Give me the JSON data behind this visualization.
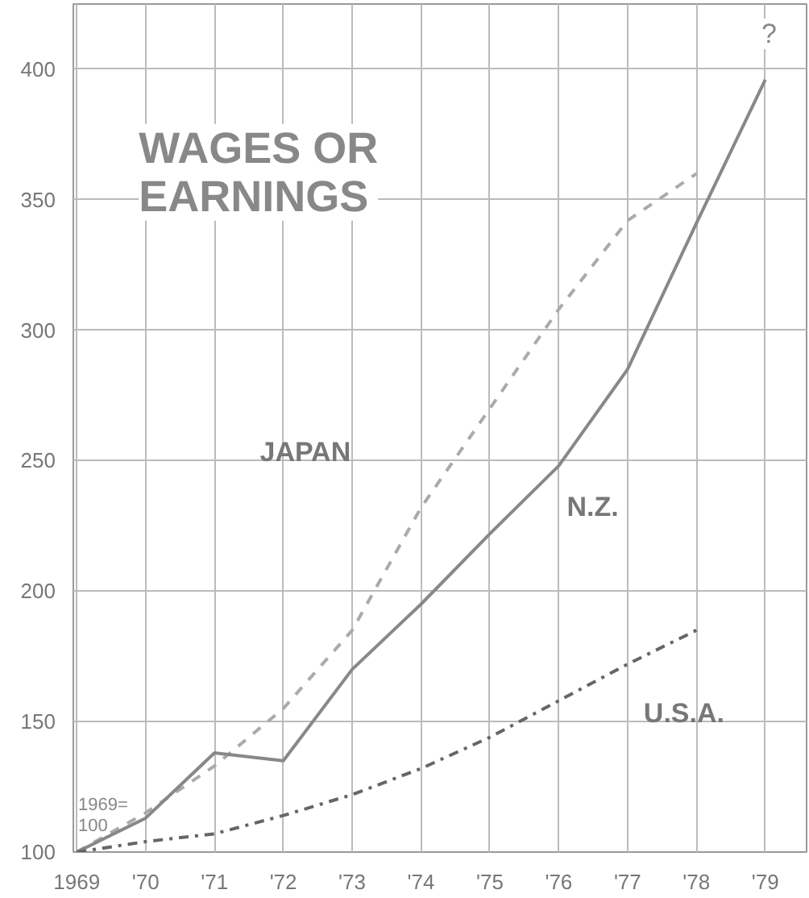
{
  "chart_data": {
    "type": "line",
    "title": "WAGES OR\nEARNINGS",
    "x": [
      1969,
      1970,
      1971,
      1972,
      1973,
      1974,
      1975,
      1976,
      1977,
      1978,
      1979
    ],
    "series": [
      {
        "name": "JAPAN",
        "color": "#aaaaaa",
        "line_style": "dashed",
        "values": [
          100,
          115,
          133,
          155,
          185,
          232,
          270,
          308,
          342,
          360,
          null
        ]
      },
      {
        "name": "N.Z.",
        "color": "#888888",
        "line_style": "solid",
        "values": [
          100,
          113,
          138,
          135,
          170,
          195,
          222,
          248,
          285,
          341,
          396
        ]
      },
      {
        "name": "U.S.A.",
        "color": "#666666",
        "line_style": "dashdot",
        "values": [
          100,
          104,
          107,
          114,
          122,
          132,
          144,
          158,
          172,
          185,
          null
        ]
      }
    ],
    "xlim": [
      1968.95,
      1979.6
    ],
    "ylim": [
      100,
      425
    ],
    "xticks": [
      1969,
      {
        "value": 1970,
        "label": "'70"
      },
      {
        "value": 1971,
        "label": "'71"
      },
      {
        "value": 1972,
        "label": "'72"
      },
      {
        "value": 1973,
        "label": "'73"
      },
      {
        "value": 1974,
        "label": "'74"
      },
      {
        "value": 1975,
        "label": "'75"
      },
      {
        "value": 1976,
        "label": "'76"
      },
      {
        "value": 1977,
        "label": "'77"
      },
      {
        "value": 1978,
        "label": "'78"
      },
      {
        "value": 1979,
        "label": "'79"
      }
    ],
    "yticks": [
      100,
      150,
      200,
      250,
      300,
      350,
      400
    ],
    "grid": true,
    "marker": "none",
    "annotations": [
      "?",
      "1969=\n100"
    ]
  }
}
